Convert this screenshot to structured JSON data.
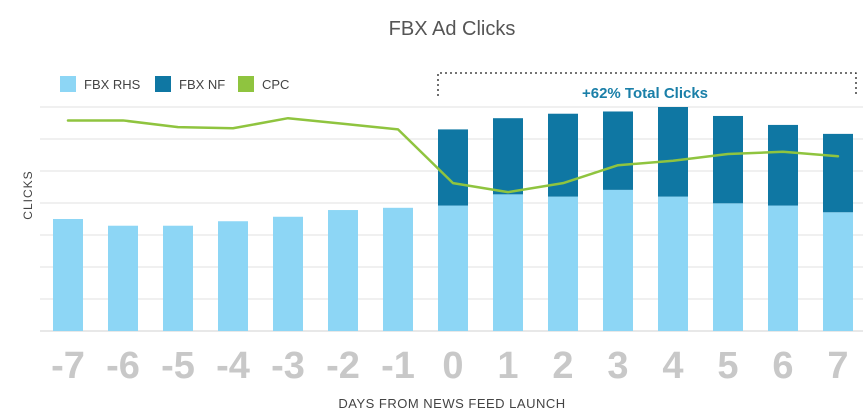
{
  "chart_data": {
    "type": "bar",
    "title": "FBX Ad Clicks",
    "xlabel": "DAYS FROM NEWS FEED LAUNCH",
    "ylabel": "CLICKS",
    "categories": [
      "-7",
      "-6",
      "-5",
      "-4",
      "-3",
      "-2",
      "-1",
      "0",
      "1",
      "2",
      "3",
      "4",
      "5",
      "6",
      "7"
    ],
    "stacked": true,
    "ylim": [
      0,
      10
    ],
    "grid": true,
    "legend_position": "top-left",
    "series": [
      {
        "name": "FBX RHS",
        "kind": "bar",
        "color": "#8dd6f5",
        "values": [
          5.0,
          4.7,
          4.7,
          4.9,
          5.1,
          5.4,
          5.5,
          5.6,
          6.1,
          6.0,
          6.3,
          6.0,
          5.7,
          5.6,
          5.3
        ]
      },
      {
        "name": "FBX NF",
        "kind": "bar",
        "color": "#0f77a3",
        "values": [
          0,
          0,
          0,
          0,
          0,
          0,
          0,
          3.4,
          3.4,
          3.7,
          3.5,
          4.0,
          3.9,
          3.6,
          3.5
        ]
      },
      {
        "name": "CPC",
        "kind": "line",
        "color": "#8fc43f",
        "values": [
          9.4,
          9.4,
          9.1,
          9.05,
          9.5,
          9.25,
          9.0,
          6.6,
          6.2,
          6.6,
          7.4,
          7.6,
          7.9,
          8.0,
          7.8
        ]
      }
    ],
    "annotation": "+62% Total Clicks"
  }
}
